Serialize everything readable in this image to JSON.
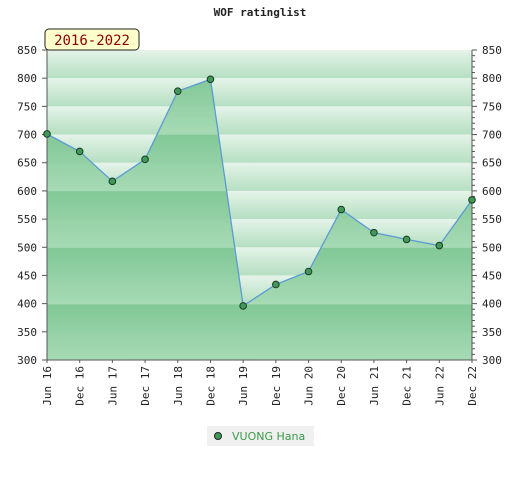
{
  "chart_data": {
    "type": "area",
    "title": "WOF ratinglist",
    "period_badge": "2016-2022",
    "x": [
      "Jun 16",
      "Dec 16",
      "Jun 17",
      "Dec 17",
      "Jun 18",
      "Dec 18",
      "Jun 19",
      "Dec 19",
      "Jun 20",
      "Dec 20",
      "Jun 21",
      "Dec 21",
      "Jun 22",
      "Dec 22"
    ],
    "series": [
      {
        "name": "VUONG Hana",
        "values": [
          701,
          670,
          617,
          656,
          777,
          798,
          396,
          434,
          457,
          567,
          526,
          514,
          503,
          584
        ]
      }
    ],
    "ylim": [
      300,
      850
    ],
    "yticks": [
      300,
      350,
      400,
      450,
      500,
      550,
      600,
      650,
      700,
      750,
      800,
      850
    ],
    "grid": "banded",
    "legend": "bottom-center",
    "colors": {
      "line": "#5b9bd5",
      "fill": "#5cb87a",
      "marker": "#3f9a5a",
      "legend_text": "#3a9a4a",
      "badge_bg": "#ffffcc",
      "badge_text": "#8b0000"
    }
  }
}
